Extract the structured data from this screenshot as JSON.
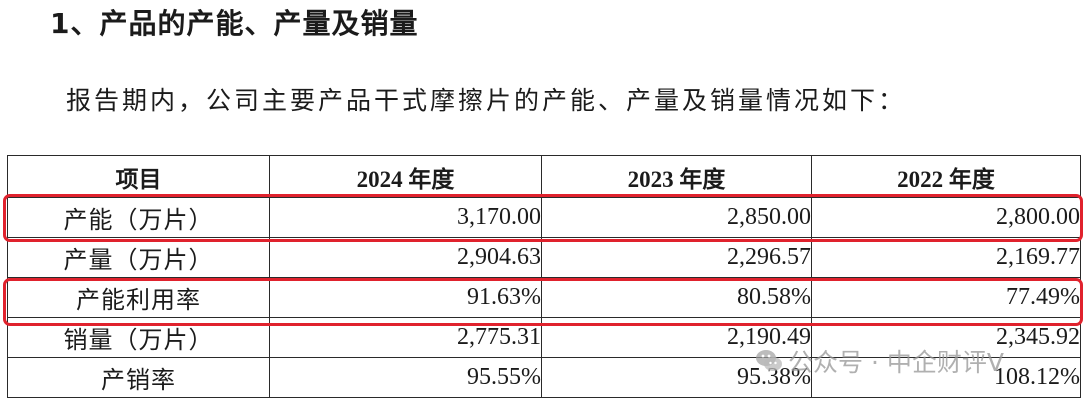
{
  "heading": "1、产品的产能、产量及销量",
  "intro": "报告期内，公司主要产品干式摩擦片的产能、产量及销量情况如下：",
  "table": {
    "headers": [
      "项目",
      "2024 年度",
      "2023 年度",
      "2022 年度"
    ],
    "rows": [
      {
        "label": "产能（万片）",
        "values": [
          "3,170.00",
          "2,850.00",
          "2,800.00"
        ],
        "highlighted": true
      },
      {
        "label": "产量（万片）",
        "values": [
          "2,904.63",
          "2,296.57",
          "2,169.77"
        ],
        "highlighted": false
      },
      {
        "label": "产能利用率",
        "values": [
          "91.63%",
          "80.58%",
          "77.49%"
        ],
        "highlighted": true
      },
      {
        "label": "销量（万片）",
        "values": [
          "2,775.31",
          "2,190.49",
          "2,345.92"
        ],
        "highlighted": false
      },
      {
        "label": "产销率",
        "values": [
          "95.55%",
          "95.38%",
          "108.12%"
        ],
        "highlighted": false
      }
    ]
  },
  "highlight_color": "#e0222d",
  "watermark": {
    "text": "公众号 · 中企财评V",
    "icon": "wechat-icon"
  }
}
